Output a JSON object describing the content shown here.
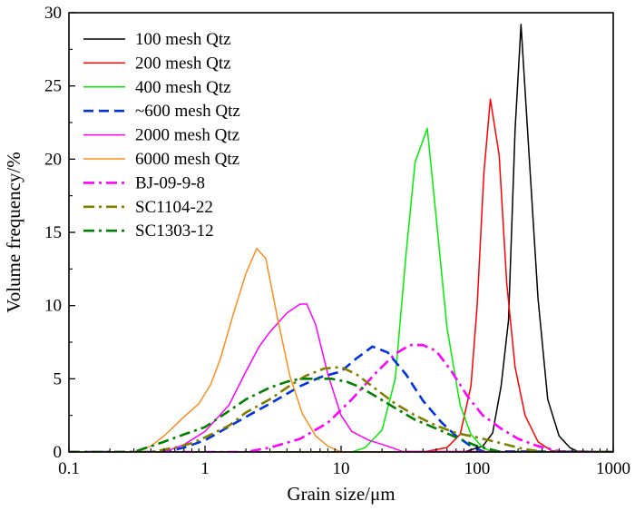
{
  "chart_data": {
    "type": "line",
    "xlabel": "Grain size/μm",
    "ylabel": "Volume frequency/%",
    "xscale": "log",
    "xlim": [
      0.1,
      1000
    ],
    "ylim": [
      0,
      30
    ],
    "xticks": [
      0.1,
      1,
      10,
      100,
      1000
    ],
    "xtick_labels": [
      "0.1",
      "1",
      "10",
      "100",
      "1000"
    ],
    "yticks": [
      0,
      5,
      10,
      15,
      20,
      25,
      30
    ],
    "ytick_labels": [
      "0",
      "5",
      "10",
      "15",
      "20",
      "25",
      "30"
    ],
    "legend_position": "top-left",
    "series": [
      {
        "name": "100 mesh Qtz",
        "color": "#000000",
        "dash": "solid",
        "x": [
          0.1,
          80,
          110,
          130,
          150,
          170,
          190,
          210,
          240,
          280,
          330,
          400,
          480,
          560,
          700,
          1000
        ],
        "y": [
          0,
          0,
          0.4,
          1.3,
          4.5,
          9,
          22,
          29.2,
          20.5,
          10.5,
          3.6,
          1.1,
          0.3,
          0,
          0,
          0
        ]
      },
      {
        "name": "200 mesh Qtz",
        "color": "#ff0000",
        "dash": "solid",
        "x": [
          0.1,
          40,
          60,
          75,
          90,
          100,
          112,
          125,
          145,
          165,
          190,
          225,
          280,
          350,
          430,
          1000
        ],
        "y": [
          0,
          0,
          0.3,
          1.2,
          4.5,
          10,
          19,
          24.1,
          20.3,
          11.5,
          5.8,
          2.5,
          0.7,
          0.1,
          0,
          0
        ]
      },
      {
        "name": "400 mesh Qtz",
        "color": "#00ee00",
        "dash": "solid",
        "x": [
          0.1,
          12,
          15,
          20,
          25,
          30,
          35,
          43,
          50,
          60,
          75,
          90,
          110,
          130,
          1000
        ],
        "y": [
          0,
          0,
          0.3,
          1.5,
          5,
          13.5,
          19.8,
          22.1,
          16,
          8.5,
          3.2,
          1.2,
          0.3,
          0,
          0
        ]
      },
      {
        "name": "~600 mesh Qtz",
        "color": "#0033dd",
        "dash": "dash",
        "x": [
          0.1,
          0.5,
          0.7,
          1,
          2,
          3,
          5,
          7,
          10,
          13,
          17,
          22,
          30,
          40,
          55,
          70,
          90,
          110,
          1000
        ],
        "y": [
          0,
          0,
          0.3,
          0.8,
          2.4,
          3.3,
          4.5,
          5.1,
          5.5,
          6.4,
          7.2,
          6.8,
          5.3,
          3.5,
          2.0,
          1.1,
          0.4,
          0.05,
          0
        ]
      },
      {
        "name": "2000 mesh Qtz",
        "color": "#ff00ff",
        "dash": "solid",
        "x": [
          0.1,
          0.5,
          0.7,
          1,
          1.5,
          2,
          2.5,
          3,
          4,
          5,
          5.6,
          6.5,
          8,
          10,
          12,
          16,
          22,
          28,
          1000
        ],
        "y": [
          0,
          0,
          0.5,
          1.4,
          3.2,
          5.5,
          7.2,
          8.2,
          9.5,
          10.1,
          10.1,
          8.7,
          5.3,
          2.5,
          1.4,
          0.8,
          0.4,
          0.05,
          0
        ]
      },
      {
        "name": "6000 mesh Qtz",
        "color": "#ff8c1a",
        "dash": "solid",
        "x": [
          0.1,
          0.3,
          0.4,
          0.5,
          0.6,
          0.7,
          0.9,
          1.1,
          1.3,
          1.6,
          2.0,
          2.4,
          2.8,
          3.4,
          4.2,
          5.2,
          6.5,
          8,
          10,
          1000
        ],
        "y": [
          0,
          0,
          0.4,
          1.1,
          1.8,
          2.4,
          3.3,
          4.6,
          6.4,
          9.3,
          12.2,
          13.9,
          13.2,
          9.2,
          5.2,
          2.6,
          1.1,
          0.4,
          0,
          0
        ]
      },
      {
        "name": "BJ-09-9-8",
        "color": "#ff00ff",
        "dash": "dashdot",
        "x": [
          0.1,
          2,
          3,
          5,
          8,
          12,
          18,
          25,
          32,
          40,
          50,
          65,
          85,
          110,
          150,
          200,
          280,
          400,
          1000
        ],
        "y": [
          0,
          0,
          0.3,
          0.9,
          2.0,
          3.6,
          5.4,
          6.7,
          7.3,
          7.3,
          6.9,
          5.5,
          3.8,
          2.5,
          1.6,
          0.9,
          0.4,
          0.05,
          0
        ]
      },
      {
        "name": "SC1104-22",
        "color": "#808000",
        "dash": "dashdot",
        "x": [
          0.1,
          0.4,
          0.6,
          0.8,
          1.0,
          1.5,
          2.0,
          3.0,
          4.0,
          5.5,
          7.5,
          10,
          13,
          18,
          25,
          35,
          50,
          70,
          100,
          150,
          220,
          320,
          1000
        ],
        "y": [
          0,
          0,
          0.3,
          0.6,
          1.0,
          1.8,
          2.7,
          3.6,
          4.4,
          5.2,
          5.7,
          5.8,
          5.3,
          4.3,
          3.3,
          2.5,
          1.8,
          1.3,
          1.0,
          0.6,
          0.2,
          0,
          0
        ]
      },
      {
        "name": "SC1303-12",
        "color": "#008000",
        "dash": "dashdot",
        "x": [
          0.1,
          0.3,
          0.5,
          0.7,
          1.0,
          1.5,
          2.0,
          3.0,
          4.0,
          5.0,
          6.5,
          8.5,
          11,
          14,
          18,
          25,
          35,
          50,
          70,
          100,
          150,
          1000
        ],
        "y": [
          0,
          0,
          0.7,
          1.2,
          1.7,
          2.8,
          3.6,
          4.4,
          4.8,
          5.0,
          5.0,
          5.0,
          4.8,
          4.4,
          3.8,
          3.0,
          2.2,
          1.6,
          1.0,
          0.4,
          0,
          0
        ]
      }
    ]
  }
}
